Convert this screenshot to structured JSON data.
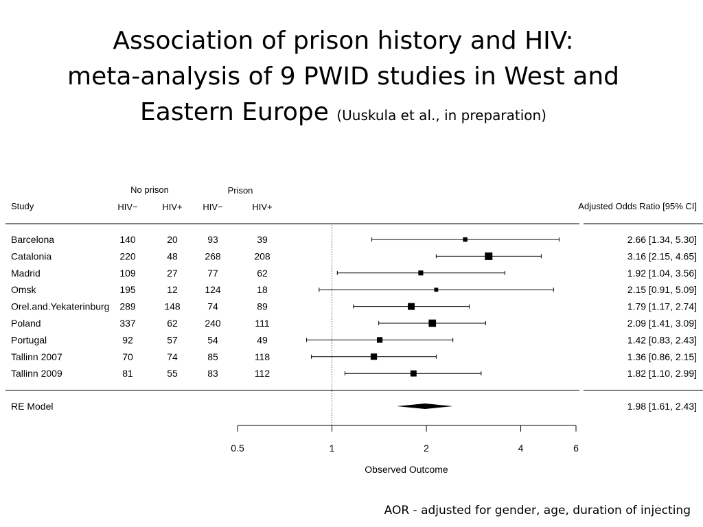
{
  "title": {
    "line1": "Association of prison history and HIV:",
    "line2": "meta-analysis of 9 PWID studies in West and",
    "line3_main": "Eastern Europe",
    "line3_sub": "(Uuskula et al., in preparation)"
  },
  "footnote": "AOR - adjusted for gender, age, duration of injecting",
  "chart_data": {
    "type": "forest",
    "headers": {
      "study": "Study",
      "group_no_prison": "No prison",
      "group_prison": "Prison",
      "hiv_neg": "HIV−",
      "hiv_pos": "HIV+",
      "effect": "Adjusted Odds Ratio [95% CI]"
    },
    "studies": [
      {
        "name": "Barcelona",
        "np_neg": "140",
        "np_pos": "20",
        "p_neg": "93",
        "p_pos": "39",
        "aor": 2.66,
        "lo": 1.34,
        "hi": 5.3,
        "ci_text": "2.66 [1.34, 5.30]",
        "weight": 0.35
      },
      {
        "name": "Catalonia",
        "np_neg": "220",
        "np_pos": "48",
        "p_neg": "268",
        "p_pos": "208",
        "aor": 3.16,
        "lo": 2.15,
        "hi": 4.65,
        "ci_text": "3.16 [2.15, 4.65]",
        "weight": 1.0
      },
      {
        "name": "Madrid",
        "np_neg": "109",
        "np_pos": "27",
        "p_neg": "77",
        "p_pos": "62",
        "aor": 1.92,
        "lo": 1.04,
        "hi": 3.56,
        "ci_text": "1.92 [1.04, 3.56]",
        "weight": 0.45
      },
      {
        "name": "Omsk",
        "np_neg": "195",
        "np_pos": "12",
        "p_neg": "124",
        "p_pos": "18",
        "aor": 2.15,
        "lo": 0.91,
        "hi": 5.09,
        "ci_text": "2.15 [0.91, 5.09]",
        "weight": 0.25
      },
      {
        "name": "Orel.and.Yekaterinburg",
        "np_neg": "289",
        "np_pos": "148",
        "p_neg": "74",
        "p_pos": "89",
        "aor": 1.79,
        "lo": 1.17,
        "hi": 2.74,
        "ci_text": "1.79 [1.17, 2.74]",
        "weight": 0.85
      },
      {
        "name": "Poland",
        "np_neg": "337",
        "np_pos": "62",
        "p_neg": "240",
        "p_pos": "111",
        "aor": 2.09,
        "lo": 1.41,
        "hi": 3.09,
        "ci_text": "2.09 [1.41, 3.09]",
        "weight": 0.95
      },
      {
        "name": "Portugal",
        "np_neg": "92",
        "np_pos": "57",
        "p_neg": "54",
        "p_pos": "49",
        "aor": 1.42,
        "lo": 0.83,
        "hi": 2.43,
        "ci_text": "1.42 [0.83, 2.43]",
        "weight": 0.6
      },
      {
        "name": "Tallinn 2007",
        "np_neg": "70",
        "np_pos": "74",
        "p_neg": "85",
        "p_pos": "118",
        "aor": 1.36,
        "lo": 0.86,
        "hi": 2.15,
        "ci_text": "1.36 [0.86, 2.15]",
        "weight": 0.75
      },
      {
        "name": "Tallinn 2009",
        "np_neg": "81",
        "np_pos": "55",
        "p_neg": "83",
        "p_pos": "112",
        "aor": 1.82,
        "lo": 1.1,
        "hi": 2.99,
        "ci_text": "1.82 [1.10, 2.99]",
        "weight": 0.7
      }
    ],
    "summary": {
      "name": "RE Model",
      "aor": 1.98,
      "lo": 1.61,
      "hi": 2.43,
      "ci_text": "1.98 [1.61, 2.43]"
    },
    "x_axis": {
      "scale": "log",
      "xlim": [
        0.5,
        6
      ],
      "ticks": [
        0.5,
        1,
        2,
        4,
        6
      ],
      "tick_labels": [
        "0.5",
        "1",
        "2",
        "4",
        "6"
      ],
      "label": "Observed Outcome",
      "reference_line": 1
    }
  }
}
